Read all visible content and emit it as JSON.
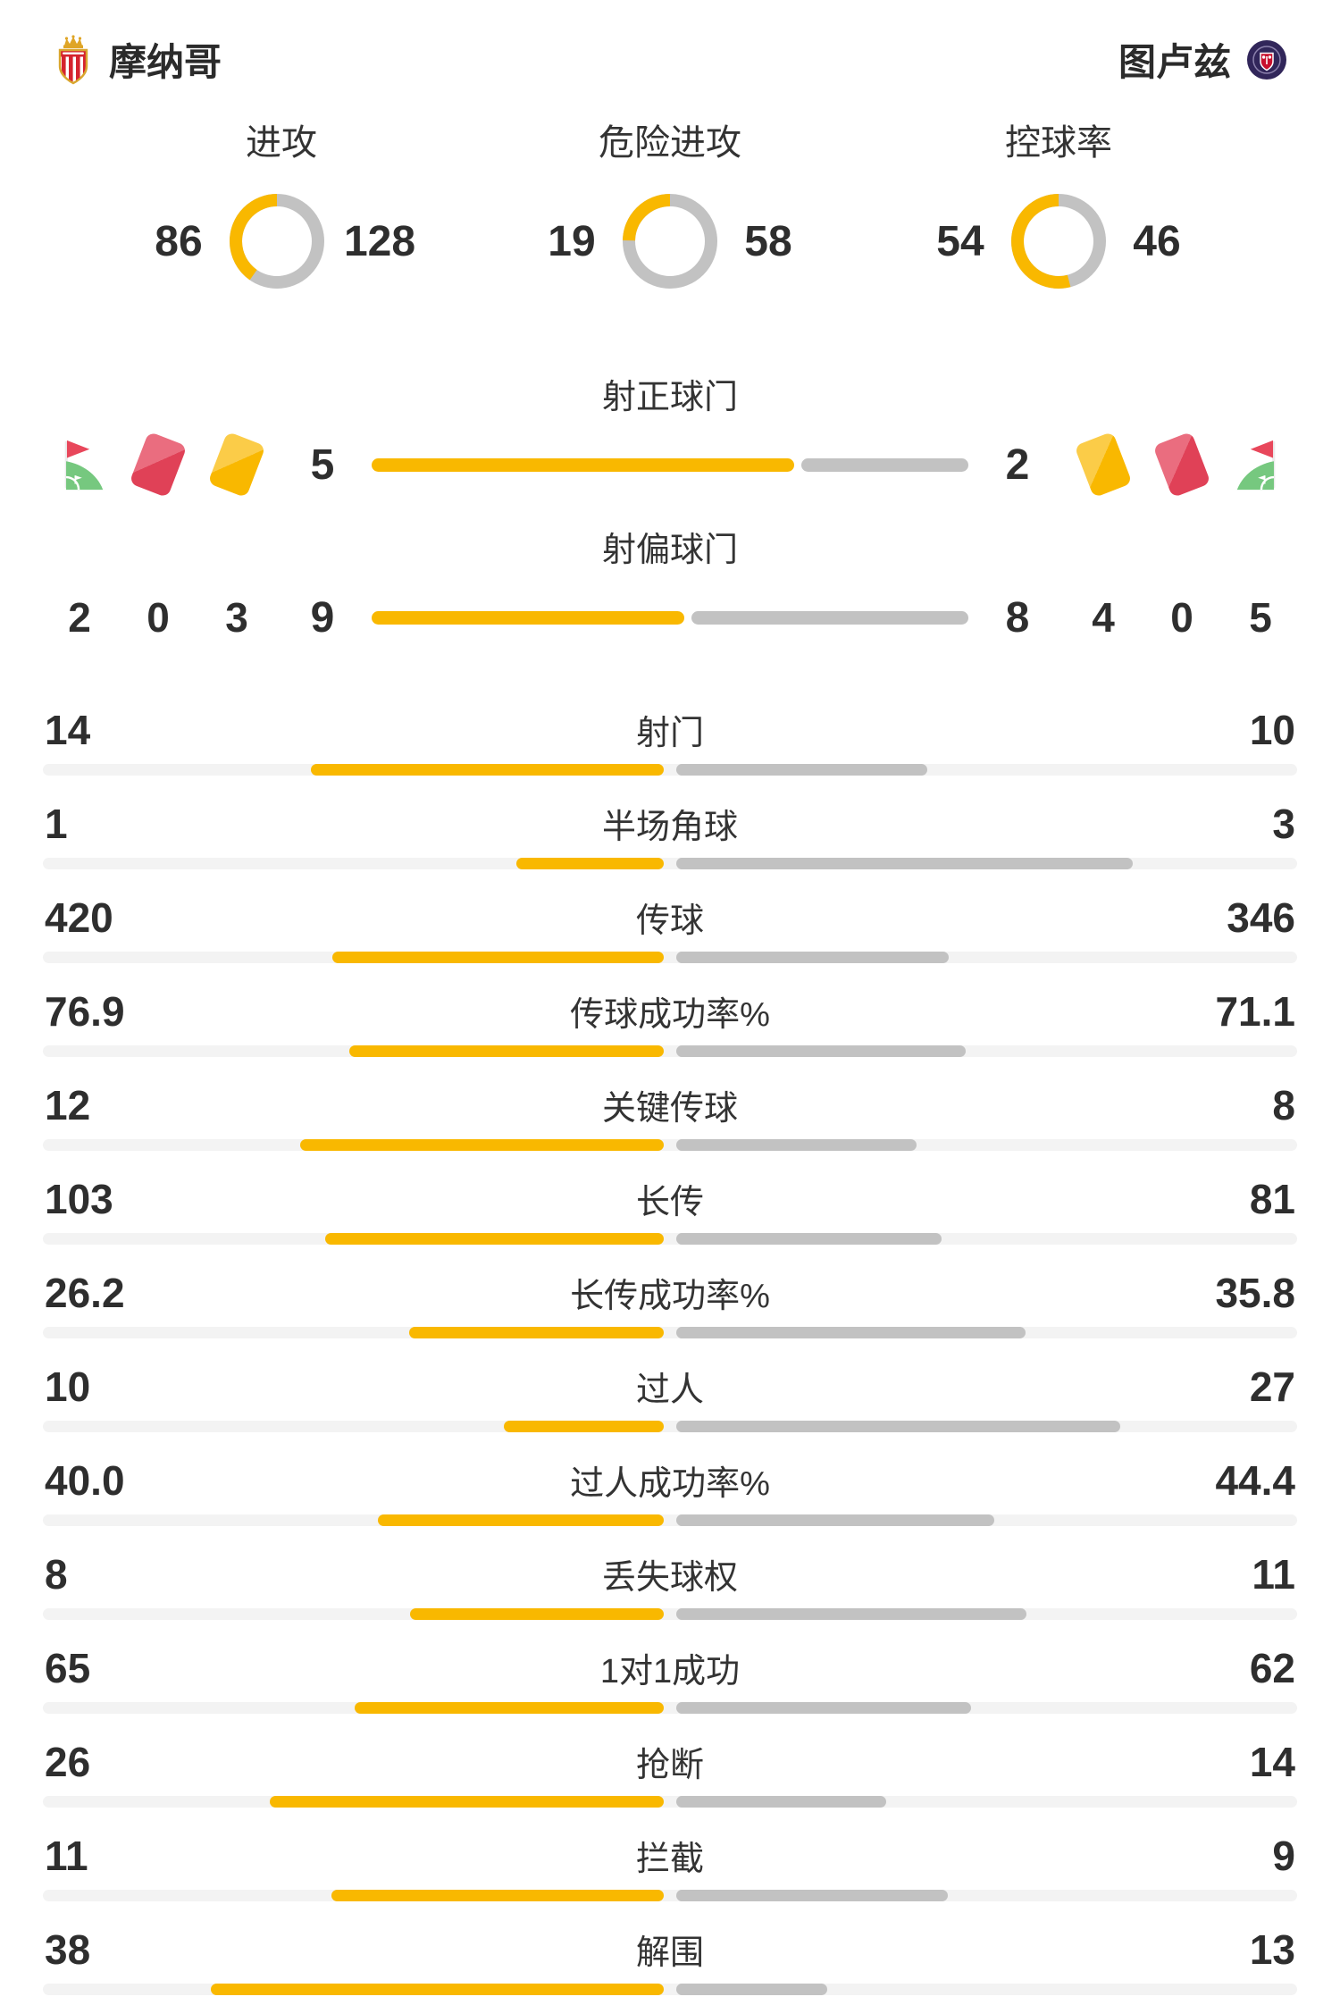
{
  "header": {
    "home_name": "摩纳哥",
    "away_name": "图卢兹"
  },
  "colors": {
    "home": "#F9B800",
    "away": "#C2C2C2",
    "track": "#F3F3F3",
    "card_red": "#E04157",
    "card_yellow": "#F9B800",
    "flag_red": "#E8475B",
    "grass_green": "#76C87F"
  },
  "overview": [
    {
      "title": "进攻",
      "home": 86,
      "away": 128
    },
    {
      "title": "危险进攻",
      "home": 19,
      "away": 58
    },
    {
      "title": "控球率",
      "home": 54,
      "away": 46
    }
  ],
  "shots": [
    {
      "label": "射正球门",
      "home": 5,
      "away": 2
    },
    {
      "label": "射偏球门",
      "home": 9,
      "away": 8
    }
  ],
  "discipline": {
    "home": {
      "corner_kicks": "2",
      "red_cards": "0",
      "yellow_cards": "3"
    },
    "away": {
      "yellow_cards": "4",
      "red_cards": "0",
      "corner_kicks": "5"
    }
  },
  "stats": [
    {
      "label": "射门",
      "home": "14",
      "away": "10"
    },
    {
      "label": "半场角球",
      "home": "1",
      "away": "3"
    },
    {
      "label": "传球",
      "home": "420",
      "away": "346"
    },
    {
      "label": "传球成功率%",
      "home": "76.9",
      "away": "71.1"
    },
    {
      "label": "关键传球",
      "home": "12",
      "away": "8"
    },
    {
      "label": "长传",
      "home": "103",
      "away": "81"
    },
    {
      "label": "长传成功率%",
      "home": "26.2",
      "away": "35.8"
    },
    {
      "label": "过人",
      "home": "10",
      "away": "27"
    },
    {
      "label": "过人成功率%",
      "home": "40.0",
      "away": "44.4"
    },
    {
      "label": "丢失球权",
      "home": "8",
      "away": "11"
    },
    {
      "label": "1对1成功",
      "home": "65",
      "away": "62"
    },
    {
      "label": "抢断",
      "home": "26",
      "away": "14"
    },
    {
      "label": "拦截",
      "home": "11",
      "away": "9"
    },
    {
      "label": "解围",
      "home": "38",
      "away": "13"
    }
  ]
}
